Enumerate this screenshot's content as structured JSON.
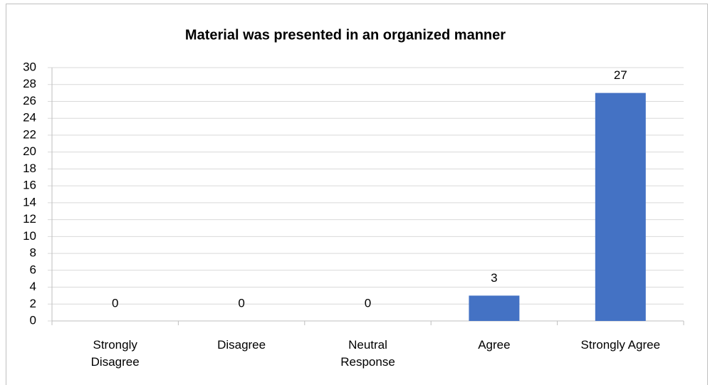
{
  "chart_data": {
    "type": "bar",
    "title": "Material was presented in an organized manner",
    "categories": [
      "Strongly Disagree",
      "Disagree",
      "Neutral Response",
      "Agree",
      "Strongly Agree"
    ],
    "values": [
      0,
      0,
      0,
      3,
      27
    ],
    "color": "#4472c4",
    "ylim": [
      0,
      30
    ],
    "yticks": [
      0,
      2,
      4,
      6,
      8,
      10,
      12,
      14,
      16,
      18,
      20,
      22,
      24,
      26,
      28,
      30
    ],
    "grid": true
  }
}
